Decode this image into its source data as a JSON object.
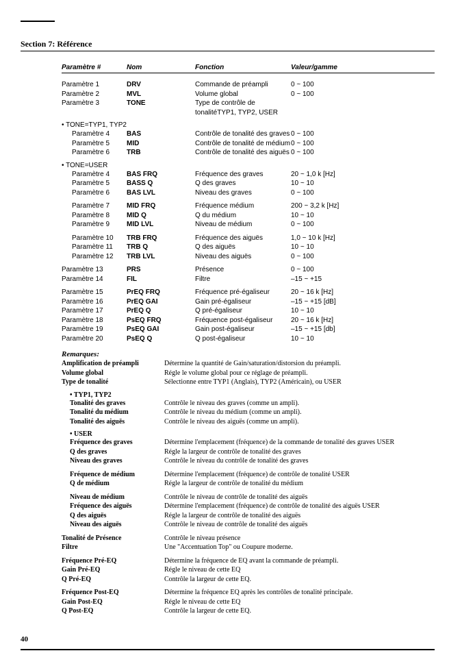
{
  "section_title": "Section 7: Référence",
  "table_headers": {
    "c1": "Paramètre #",
    "c2": "Nom",
    "c3": "Fonction",
    "c4": "Valeur/gamme"
  },
  "block1": [
    {
      "c1": "Paramètre 1",
      "c2": "DRV",
      "c3": "Commande de préampli",
      "c4": "0 ~ 100"
    },
    {
      "c1": "Paramètre 2",
      "c2": "MVL",
      "c3": "Volume global",
      "c4": "0 ~ 100"
    },
    {
      "c1": "Paramètre 3",
      "c2": "TONE",
      "c3": "Type de contrôle de tonalitéTYP1, TYP2, USER",
      "c4": ""
    }
  ],
  "grp_tone_typ": "• TONE=TYP1, TYP2",
  "block_tone_typ": [
    {
      "c1": "Paramètre 4",
      "c2": "BAS",
      "c3": "Contrôle de tonalité des graves",
      "c4": "0 ~ 100"
    },
    {
      "c1": "Paramètre 5",
      "c2": "MID",
      "c3": "Contrôle de tonalité de médium",
      "c4": "0 ~ 100"
    },
    {
      "c1": "Paramètre 6",
      "c2": "TRB",
      "c3": "Contrôle de tonalité des aiguës",
      "c4": "0 ~ 100"
    }
  ],
  "grp_tone_user": "• TONE=USER",
  "block_user_bas": [
    {
      "c1": "Paramètre 4",
      "c2": "BAS FRQ",
      "c3": "Fréquence des graves",
      "c4": "20 ~ 1,0 k [Hz]"
    },
    {
      "c1": "Paramètre 5",
      "c2": "BASS Q",
      "c3": "Q des graves",
      "c4": "10 ~ 10"
    },
    {
      "c1": "Paramètre 6",
      "c2": "BAS LVL",
      "c3": "Niveau des graves",
      "c4": "0 ~ 100"
    }
  ],
  "block_user_mid": [
    {
      "c1": "Paramètre 7",
      "c2": "MID FRQ",
      "c3": "Fréquence médium",
      "c4": "200 ~ 3,2 k [Hz]"
    },
    {
      "c1": "Paramètre 8",
      "c2": "MID Q",
      "c3": "Q du médium",
      "c4": "10 ~ 10"
    },
    {
      "c1": "Paramètre 9",
      "c2": "MID LVL",
      "c3": "Niveau de médium",
      "c4": "0 ~ 100"
    }
  ],
  "block_user_trb": [
    {
      "c1": "Paramètre 10",
      "c2": "TRB FRQ",
      "c3": "Fréquence des aiguës",
      "c4": "1,0 ~ 10 k [Hz]"
    },
    {
      "c1": "Paramètre 11",
      "c2": "TRB Q",
      "c3": "Q des aiguës",
      "c4": "10 ~ 10"
    },
    {
      "c1": "Paramètre 12",
      "c2": "TRB LVL",
      "c3": "Niveau des aiguës",
      "c4": "0 ~ 100"
    }
  ],
  "block_prs": [
    {
      "c1": "Paramètre 13",
      "c2": "PRS",
      "c3": "Présence",
      "c4": "0 ~ 100"
    },
    {
      "c1": "Paramètre 14",
      "c2": "FIL",
      "c3": "Filtre",
      "c4": "–15 ~ +15"
    }
  ],
  "block_eq": [
    {
      "c1": "Paramètre 15",
      "c2": "PrEQ FRQ",
      "c3": "Fréquence pré-égaliseur",
      "c4": "20 ~ 16 k [Hz]"
    },
    {
      "c1": "Paramètre 16",
      "c2": "PrEQ GAI",
      "c3": "Gain pré-égaliseur",
      "c4": "–15 ~ +15 [dB]"
    },
    {
      "c1": "Paramètre 17",
      "c2": "PrEQ Q",
      "c3": "Q pré-égaliseur",
      "c4": "10 ~ 10"
    },
    {
      "c1": "Paramètre 18",
      "c2": "PsEQ FRQ",
      "c3": "Fréquence post-égaliseur",
      "c4": "20 ~ 16 k [Hz]"
    },
    {
      "c1": "Paramètre 19",
      "c2": "PsEQ GAI",
      "c3": "Gain post-égaliseur",
      "c4": "–15 ~ +15 [db]"
    },
    {
      "c1": "Paramètre 20",
      "c2": "PsEQ Q",
      "c3": "Q post-égaliseur",
      "c4": "10 ~ 10"
    }
  ],
  "remarks_title": "Remarques:",
  "rem_top": [
    {
      "l": "Amplification de préampli",
      "r": "Détermine la quantité de Gain/saturation/distorsion du préampli."
    },
    {
      "l": "Volume global",
      "r": "Régle le volume global pour ce réglage de préampli."
    },
    {
      "l": "Type de tonalité",
      "r": "Sélectionne entre TYP1 (Anglais), TYP2 (Américain), ou USER"
    }
  ],
  "rem_sub_typ": "• TYP1, TYP2",
  "rem_typ": [
    {
      "l": "Tonalité des graves",
      "r": "Contrôle le niveau des graves (comme un ampli)."
    },
    {
      "l": "Tonalité du médium",
      "r": "Contrôle le niveau du médium (comme un ampli)."
    },
    {
      "l": "Tonalité des aiguës",
      "r": "Contrôle le niveau des aiguës (comme un ampli)."
    }
  ],
  "rem_sub_user": "• USER",
  "rem_user1": [
    {
      "l": "Fréquence des graves",
      "r": "Détermine l'emplacement (fréquence) de la commande de tonalité des graves USER"
    },
    {
      "l": "Q des graves",
      "r": "Régle la largeur de contrôle de tonalité des graves"
    },
    {
      "l": "Niveau des graves",
      "r": "Contrôle le niveau du contrôle de tonalité des graves"
    }
  ],
  "rem_user2": [
    {
      "l": "Fréquence de médium",
      "r": "Détermine l'emplacement (fréquence) de contrôle de tonalité USER"
    },
    {
      "l": "Q de médium",
      "r": "Régle la largeur de contrôle de tonalité du médium"
    }
  ],
  "rem_user3": [
    {
      "l": "Niveau de médium",
      "r": "Contrôle le niveau de contrôle de tonalité des aiguës"
    },
    {
      "l": "Fréquence des aiguës",
      "r": "Détermine l'emplacement (fréquence) de contrôle de tonalité des aiguës USER"
    },
    {
      "l": "Q des aiguës",
      "r": "Régle la largeur de contrôle de tonalité des aiguës"
    },
    {
      "l": "Niveau des aiguës",
      "r": "Contrôle le niveau de contrôle de tonalité des aiguës"
    }
  ],
  "rem_bottom1": [
    {
      "l": "Tonalité de Présence",
      "r": "Contrôle le niveau présence"
    },
    {
      "l": "Filtre",
      "r": "Une \"Accentuation Top\" ou Coupure moderne."
    }
  ],
  "rem_bottom2": [
    {
      "l": "Fréquence Pré-EQ",
      "r": "Détermine la fréquence de EQ avant la commande de préampli."
    },
    {
      "l": "Gain Pré-EQ",
      "r": "Régle le niveau de cette EQ"
    },
    {
      "l": "Q Pré-EQ",
      "r": "Contrôle la largeur de cette EQ."
    }
  ],
  "rem_bottom3": [
    {
      "l": "Fréquence Post-EQ",
      "r": "Détermine la fréquence EQ après les contrôles de tonalité principale."
    },
    {
      "l": "Gain Post-EQ",
      "r": "Régle le niveau de cette EQ"
    },
    {
      "l": "Q Post-EQ",
      "r": "Contrôle la largeur de cette EQ."
    }
  ],
  "page_number": "40"
}
